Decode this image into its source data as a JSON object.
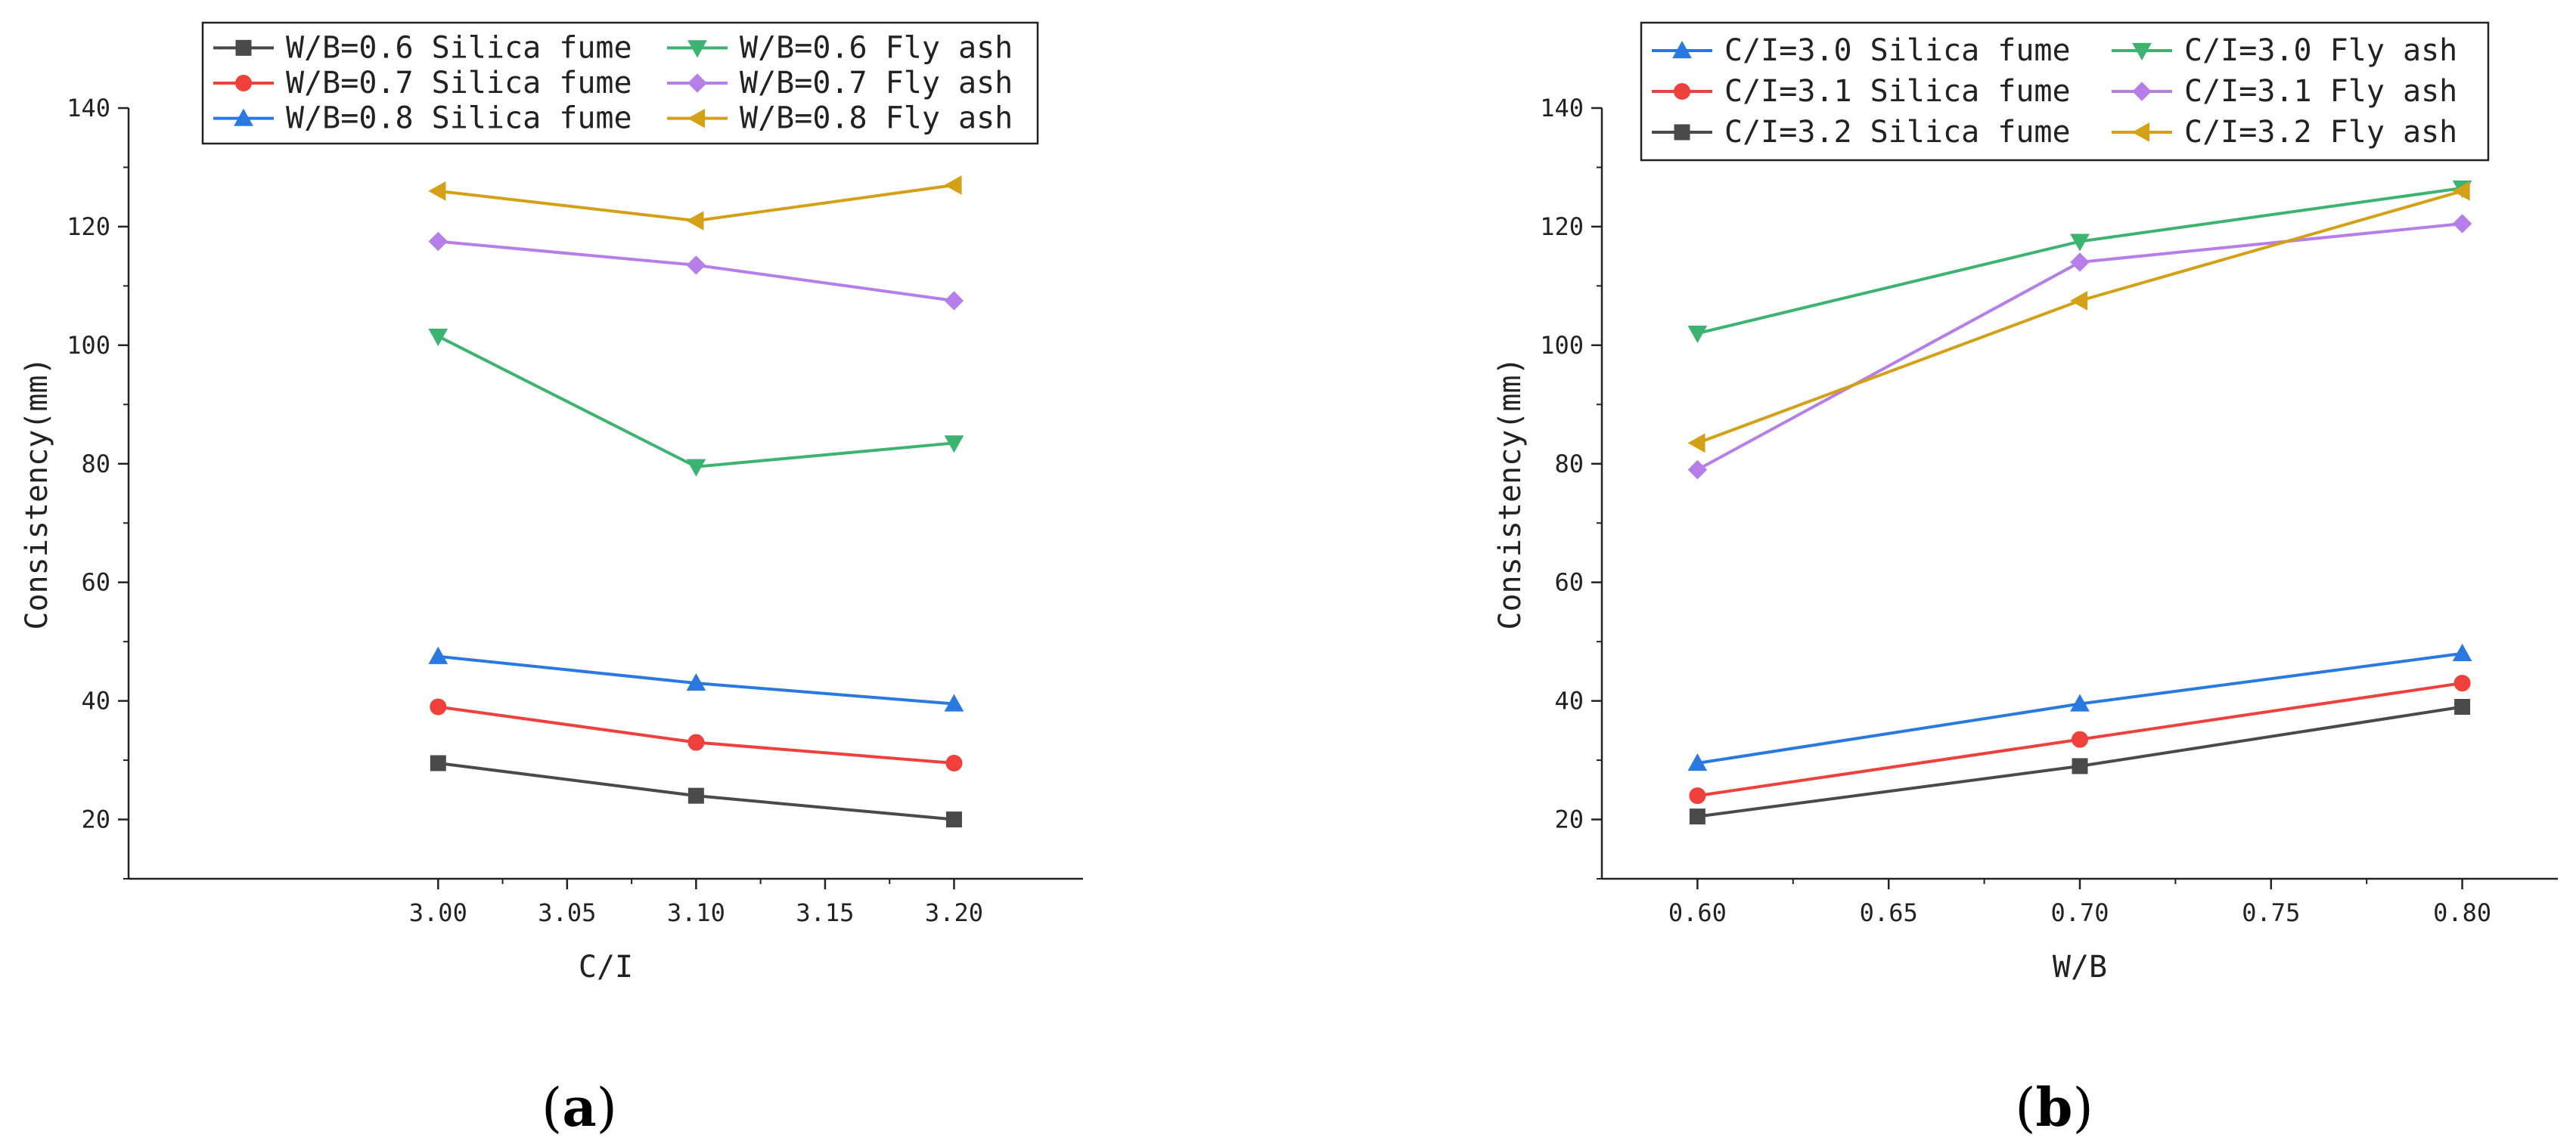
{
  "chart_data": [
    {
      "id": "a",
      "type": "line",
      "caption": {
        "open": "(",
        "letter": "a",
        "close": ")"
      },
      "xlabel": "C/I",
      "ylabel": "Consistency(mm)",
      "xlim": [
        2.88,
        3.25
      ],
      "ylim": [
        10,
        140
      ],
      "x_ticks": [
        3.0,
        3.05,
        3.1,
        3.15,
        3.2
      ],
      "x_tick_labels": [
        "3.00",
        "3.05",
        "3.10",
        "3.15",
        "3.20"
      ],
      "y_ticks": [
        20,
        40,
        60,
        80,
        100,
        120,
        140
      ],
      "y_tick_labels": [
        "20",
        "40",
        "60",
        "80",
        "100",
        "120",
        "140"
      ],
      "x": [
        3.0,
        3.1,
        3.2
      ],
      "series": [
        {
          "name": "W/B=0.6 Silica fume",
          "color": "#4a4a4a",
          "marker": "square",
          "values": [
            29.5,
            24.0,
            20.0
          ]
        },
        {
          "name": "W/B=0.7 Silica fume",
          "color": "#f0403c",
          "marker": "circle",
          "values": [
            39.0,
            33.0,
            29.5
          ]
        },
        {
          "name": "W/B=0.8 Silica fume",
          "color": "#2a79e0",
          "marker": "triangle-up",
          "values": [
            47.5,
            43.0,
            39.5
          ]
        },
        {
          "name": "W/B=0.6 Fly ash",
          "color": "#3cb371",
          "marker": "triangle-down",
          "values": [
            101.5,
            79.5,
            83.5
          ]
        },
        {
          "name": "W/B=0.7 Fly ash",
          "color": "#b57ee8",
          "marker": "diamond",
          "values": [
            117.5,
            113.5,
            107.5
          ]
        },
        {
          "name": "W/B=0.8 Fly ash",
          "color": "#d4a017",
          "marker": "triangle-left",
          "values": [
            126.0,
            121.0,
            127.0
          ]
        }
      ]
    },
    {
      "id": "b",
      "type": "line",
      "caption": {
        "open": "(",
        "letter": "b",
        "close": ")"
      },
      "xlabel": "W/B",
      "ylabel": "Consistency(mm)",
      "xlim": [
        0.575,
        0.825
      ],
      "ylim": [
        10,
        140
      ],
      "x_ticks": [
        0.6,
        0.65,
        0.7,
        0.75,
        0.8
      ],
      "x_tick_labels": [
        "0.60",
        "0.65",
        "0.70",
        "0.75",
        "0.80"
      ],
      "y_ticks": [
        20,
        40,
        60,
        80,
        100,
        120,
        140
      ],
      "y_tick_labels": [
        "20",
        "40",
        "60",
        "80",
        "100",
        "120",
        "140"
      ],
      "x": [
        0.6,
        0.7,
        0.8
      ],
      "series": [
        {
          "name": "C/I=3.0 Silica fume",
          "color": "#2a79e0",
          "marker": "triangle-up",
          "values": [
            29.5,
            39.5,
            48.0
          ]
        },
        {
          "name": "C/I=3.1 Silica fume",
          "color": "#f0403c",
          "marker": "circle",
          "values": [
            24.0,
            33.5,
            43.0
          ]
        },
        {
          "name": "C/I=3.2 Silica fume",
          "color": "#4a4a4a",
          "marker": "square",
          "values": [
            20.5,
            29.0,
            39.0
          ]
        },
        {
          "name": "C/I=3.0 Fly ash",
          "color": "#3cb371",
          "marker": "triangle-down",
          "values": [
            102.0,
            117.5,
            126.5
          ]
        },
        {
          "name": "C/I=3.1 Fly ash",
          "color": "#b57ee8",
          "marker": "diamond",
          "values": [
            79.0,
            114.0,
            120.5
          ]
        },
        {
          "name": "C/I=3.2 Fly ash",
          "color": "#d4a017",
          "marker": "triangle-left",
          "values": [
            83.5,
            107.5,
            126.0
          ]
        }
      ]
    }
  ]
}
